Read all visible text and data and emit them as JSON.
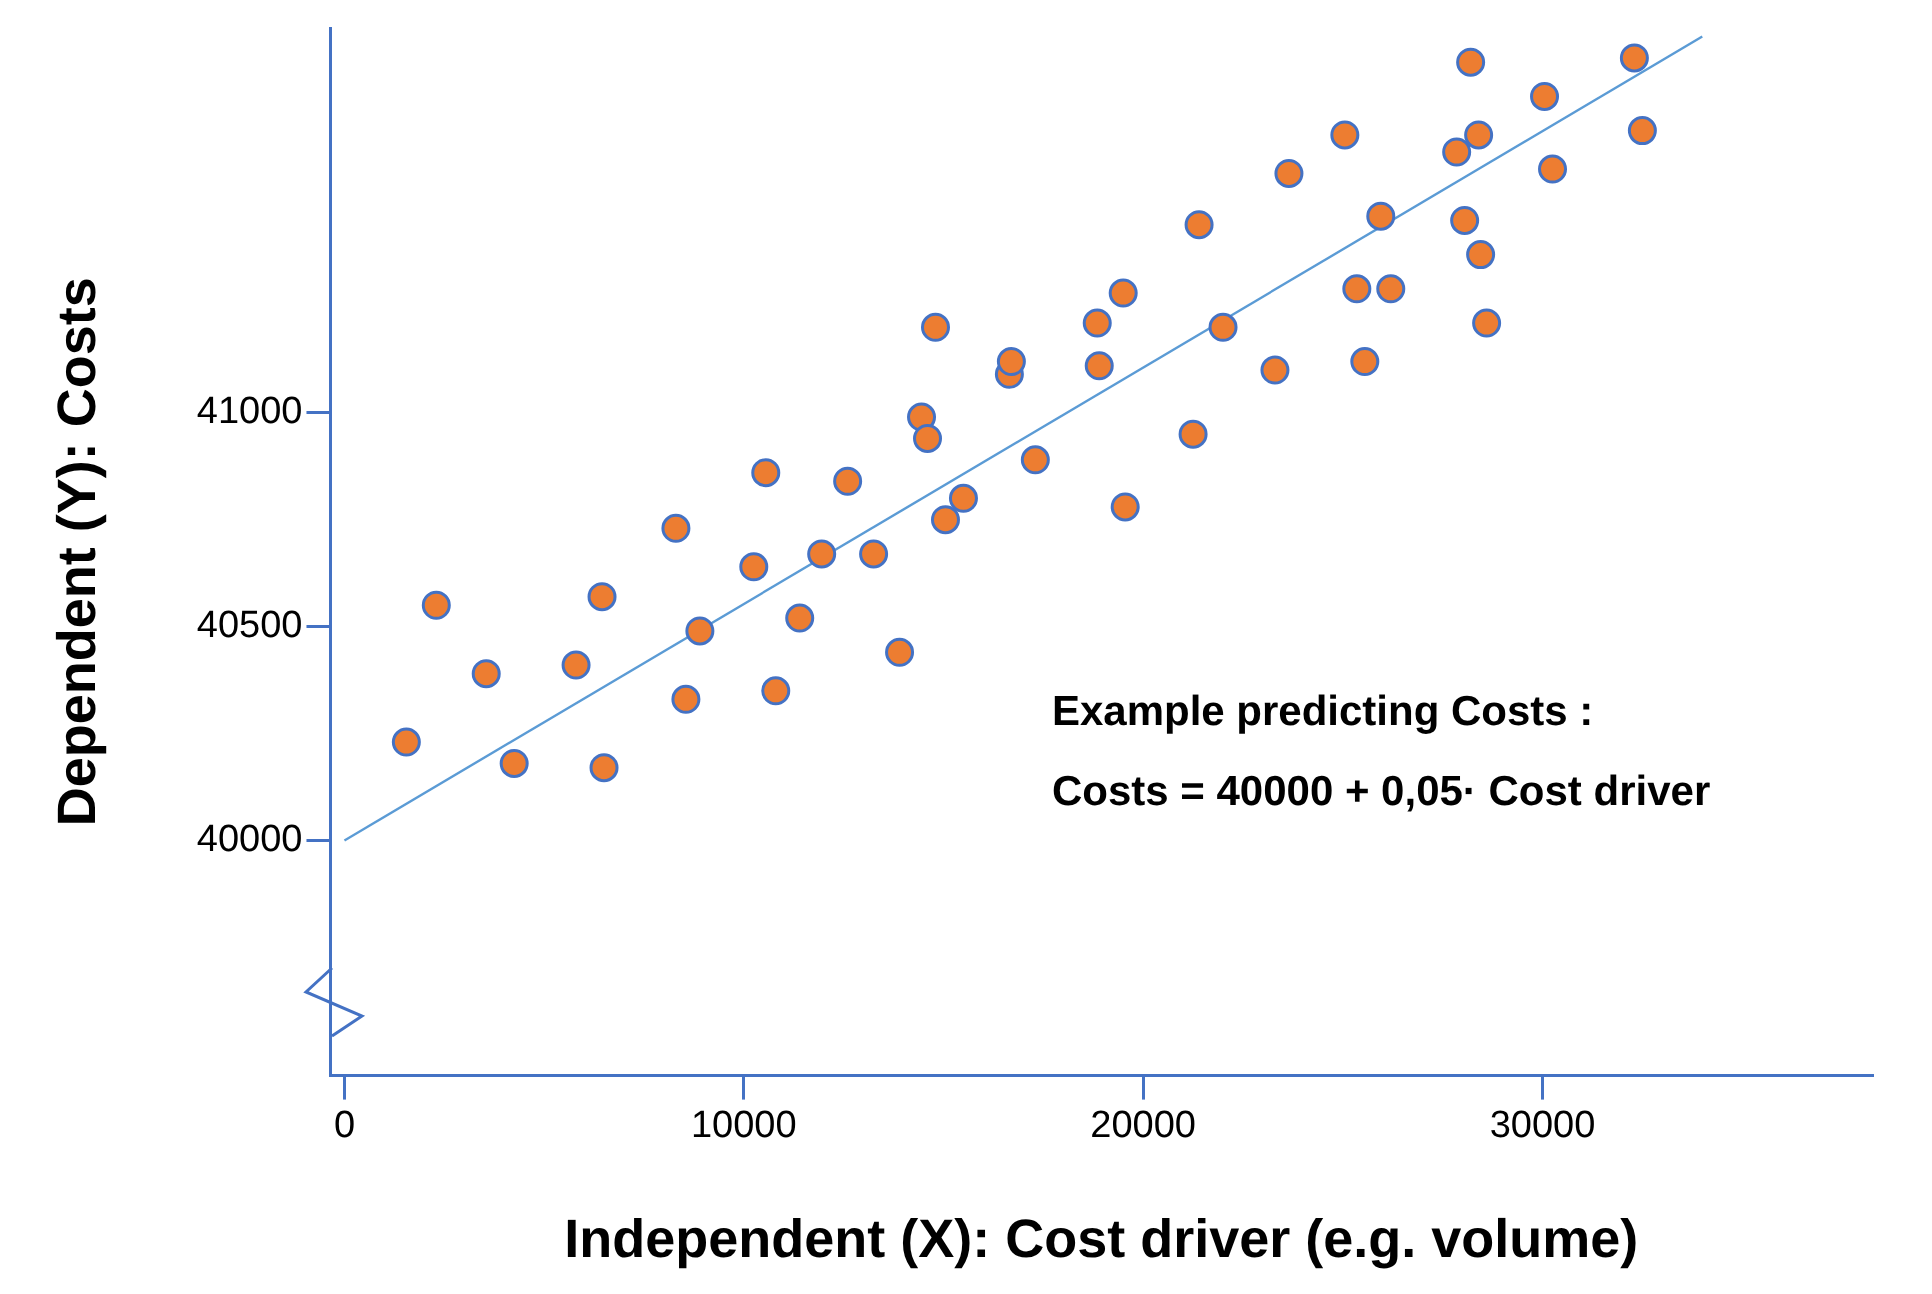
{
  "chart_data": {
    "type": "scatter",
    "xlabel": "Independent (X): Cost driver (e.g. volume)",
    "ylabel": "Dependent (Y): Costs",
    "xlim": [
      -350,
      38250
    ],
    "xticks": [
      0,
      10000,
      20000,
      30000
    ],
    "ylim": [
      39450,
      41900
    ],
    "yticks": [
      40000,
      40500,
      41000
    ],
    "annotations": [
      "Example predicting Costs :",
      "Costs = 40000 + 0,05· Cost driver"
    ],
    "series": [
      {
        "marker": "circle",
        "color": "#ed7d31",
        "x": [
          1550,
          2300,
          3550,
          4250,
          5800,
          6450,
          6500,
          8300,
          8550,
          8900,
          10250,
          10550,
          10800,
          11400,
          11950,
          12600,
          13250,
          13900,
          14450,
          14600,
          14800,
          15050,
          15500,
          16650,
          16700,
          17300,
          18850,
          18900,
          19500,
          19550,
          21250,
          21400,
          22000,
          23300,
          23650,
          25050,
          25350,
          25550,
          25950,
          26200,
          27850,
          28050,
          28200,
          28400,
          28450,
          28600,
          30050,
          30250,
          32300,
          32500
        ],
        "values": [
          40230,
          40550,
          40390,
          40180,
          40410,
          40570,
          40170,
          40730,
          40330,
          40490,
          40640,
          40860,
          40350,
          40520,
          40670,
          40840,
          40670,
          40440,
          40990,
          40940,
          41200,
          40750,
          40800,
          41090,
          41120,
          40890,
          41210,
          41110,
          41280,
          40780,
          40950,
          41440,
          41200,
          41100,
          41560,
          41650,
          41290,
          41120,
          41460,
          41290,
          41610,
          41450,
          41820,
          41650,
          41370,
          41210,
          41740,
          41570,
          41830,
          41660
        ]
      },
      {
        "type": "line",
        "marker": "none",
        "color": "#5b9bd5",
        "x": [
          0,
          34000
        ],
        "values": [
          40000,
          41880
        ]
      }
    ]
  }
}
